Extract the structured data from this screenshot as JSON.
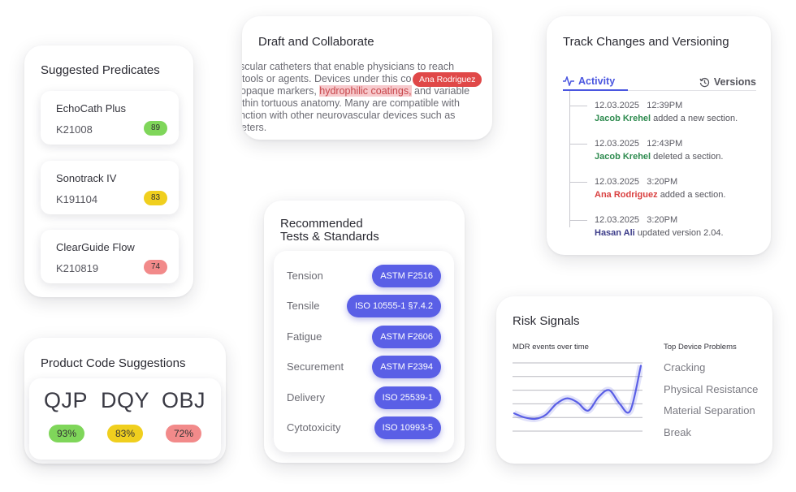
{
  "predicates": {
    "title": "Suggested Predicates",
    "items": [
      {
        "name": "EchoCath Plus",
        "code": "K21008",
        "score": "89",
        "color": "#7fd65a"
      },
      {
        "name": "Sonotrack IV",
        "code": "K191104",
        "score": "83",
        "color": "#f0cf1e"
      },
      {
        "name": "ClearGuide Flow",
        "code": "K210819",
        "score": "74",
        "color": "#f28a8a"
      }
    ]
  },
  "draft": {
    "title": "Draft and Collaborate",
    "line1": "scular catheters that enable physicians to reach",
    "line2": "tools or agents. Devices under this co",
    "line3_pre": "opaque markers, ",
    "line3_highlight": "hydrophilic coatings,",
    "line3_post": " and variable",
    "line4": "thin tortuous anatomy. Many are compatible with",
    "line5": "nction with other neurovascular devices such as",
    "line6": "eters.",
    "author": "Ana Rodriguez",
    "highlight_color": "#f7c9cc",
    "tag_color": "#e04848"
  },
  "track": {
    "title": "Track Changes and Versioning",
    "tab_activity": "Activity",
    "tab_versions": "Versions",
    "entries": [
      {
        "date": "12.03.2025",
        "time": "12:39PM",
        "name": "Jacob Krehel",
        "action": "added a new section.",
        "color": "green"
      },
      {
        "date": "12.03.2025",
        "time": "12:43PM",
        "name": "Jacob Krehel",
        "action": "deleted a section.",
        "color": "green"
      },
      {
        "date": "12.03.2025",
        "time": "3:20PM",
        "name": "Ana Rodriguez",
        "action": "added a section.",
        "color": "red"
      },
      {
        "date": "12.03.2025",
        "time": "3:20PM",
        "name": "Hasan Ali",
        "action": "updated version 2.04.",
        "color": "purple"
      }
    ]
  },
  "tests": {
    "title_line1": "Recommended",
    "title_line2": "Tests & Standards",
    "rows": [
      {
        "label": "Tension",
        "standard": "ASTM F2516"
      },
      {
        "label": "Tensile",
        "standard": "ISO 10555-1 §7.4.2"
      },
      {
        "label": "Fatigue",
        "standard": "ASTM F2606"
      },
      {
        "label": "Securement",
        "standard": "ASTM F2394"
      },
      {
        "label": "Delivery",
        "standard": "ISO 25539-1"
      },
      {
        "label": "Cytotoxicity",
        "standard": "ISO 10993-5"
      }
    ],
    "pill_color": "#5a5fe6"
  },
  "product": {
    "title": "Product Code Suggestions",
    "codes": [
      {
        "code": "QJP",
        "pct": "93%",
        "color": "#7fd65a"
      },
      {
        "code": "DQY",
        "pct": "83%",
        "color": "#f0cf1e"
      },
      {
        "code": "OBJ",
        "pct": "72%",
        "color": "#f28a8a"
      }
    ]
  },
  "risk": {
    "title": "Risk Signals",
    "chart_label": "MDR events over time",
    "problems_label": "Top Device Problems",
    "problems": [
      "Cracking",
      "Physical Resistance",
      "Material Separation",
      "Break"
    ],
    "line_color": "#5a5fe6"
  },
  "chart_data": {
    "type": "line",
    "title": "MDR events over time",
    "x": [
      0,
      1,
      2,
      3,
      4,
      5,
      6,
      7,
      8,
      9,
      10,
      11,
      12
    ],
    "series": [
      {
        "values": [
          1.3,
          1.0,
          0.9,
          1.2,
          2.0,
          2.4,
          2.1,
          1.5,
          2.5,
          3.0,
          2.0,
          1.5,
          4.8
        ]
      }
    ],
    "ylim": [
      0,
      5
    ],
    "grid": true
  }
}
